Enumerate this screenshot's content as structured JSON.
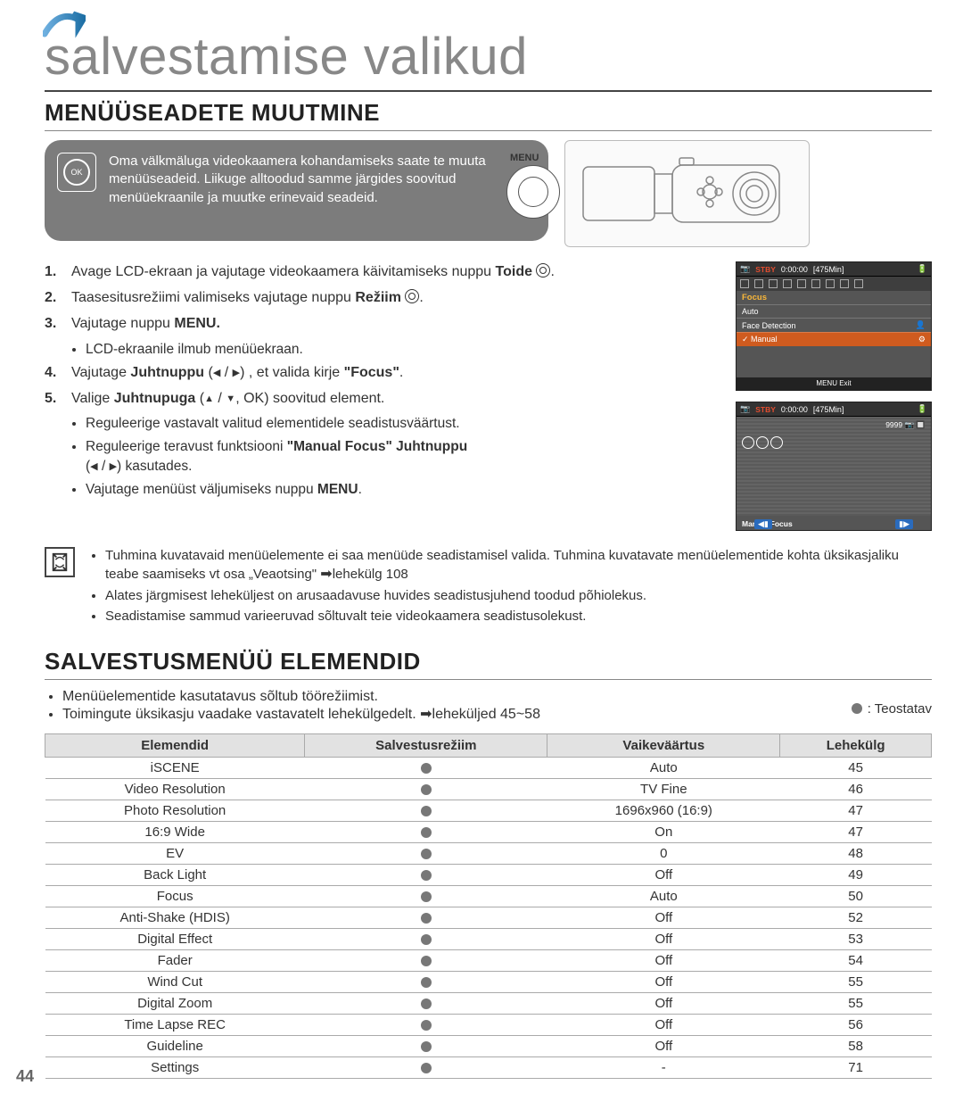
{
  "page_number": "44",
  "title": "salvestamise valikud",
  "h2_1": "MENÜÜSEADETE MUUTMINE",
  "h2_2": "SALVESTUSMENÜÜ ELEMENDID",
  "menu_box_text": "Oma välkmäluga videokaamera kohandamiseks saate te muuta menüüseadeid. Liikuge alltoodud samme järgides soovitud menüüekraanile ja muutke erinevaid seadeid.",
  "menu_badge_label": "MENU",
  "ok_label": "OK",
  "screen1": {
    "stby": "STBY",
    "time": "0:00:00",
    "remain": "[475Min]",
    "menu_title": "Focus",
    "item1": "Auto",
    "item2": "Face Detection",
    "item3": "Manual",
    "exit": "Exit"
  },
  "screen2": {
    "stby": "STBY",
    "time": "0:00:00",
    "remain": "[475Min]",
    "count": "9999",
    "mf": "Manual Focus"
  },
  "steps": {
    "s1a": "Avage LCD-ekraan ja vajutage videokaamera käivitamiseks nuppu ",
    "s1b": "Toide",
    "s2a": "Taasesitusrežiimi valimiseks vajutage nuppu ",
    "s2b": "Režiim",
    "s3a": "Vajutage nuppu ",
    "s3b": "MENU.",
    "s3_sub1": "LCD-ekraanile ilmub menüüekraan.",
    "s4a": "Vajutage ",
    "s4b": "Juhtnuppu",
    "s4c": " , et valida kirje ",
    "s4d": "\"Focus\"",
    "s5a": "Valige ",
    "s5b": "Juhtnupuga",
    "s5c": ", OK) soovitud element.",
    "s5_sub1": "Reguleerige vastavalt valitud elementidele seadistusväärtust.",
    "s5_sub2a": "Reguleerige teravust funktsiooni ",
    "s5_sub2b": "\"Manual Focus\" Juhtnuppu",
    "s5_sub2c": " kasutades.",
    "s5_sub3a": "Vajutage menüüst väljumiseks nuppu ",
    "s5_sub3b": "MENU"
  },
  "notes": {
    "n1": "Tuhmina kuvatavaid menüüelemente ei saa menüüde seadistamisel valida.  Tuhmina kuvatavate menüüelementide kohta üksikasjaliku teabe saamiseks vt osa „Veaotsing\" ",
    "n1_page": "lehekülg 108",
    "n2": "Alates järgmisest leheküljest on arusaadavuse huvides seadistusjuhend toodud põhiolekus.",
    "n3": "Seadistamise sammud varieeruvad sõltuvalt teie videokaamera seadistusolekust."
  },
  "lead1": "Menüüelementide kasutatavus sõltub töörežiimist.",
  "lead2a": "Toimingute üksikasju vaadake vastavatelt lehekülgedelt. ",
  "lead2b": "leheküljed 45~58",
  "legend_label": ": Teostatav",
  "table": {
    "headers": [
      "Elemendid",
      "Salvestusrežiim",
      "Vaikeväärtus",
      "Lehekülg"
    ],
    "rows": [
      {
        "name": "iSCENE",
        "mode": true,
        "def": "Auto",
        "page": "45"
      },
      {
        "name": "Video Resolution",
        "mode": true,
        "def": "TV Fine",
        "page": "46"
      },
      {
        "name": "Photo Resolution",
        "mode": true,
        "def": "1696x960 (16:9)",
        "page": "47"
      },
      {
        "name": "16:9 Wide",
        "mode": true,
        "def": "On",
        "page": "47"
      },
      {
        "name": "EV",
        "mode": true,
        "def": "0",
        "page": "48"
      },
      {
        "name": "Back Light",
        "mode": true,
        "def": "Off",
        "page": "49"
      },
      {
        "name": "Focus",
        "mode": true,
        "def": "Auto",
        "page": "50"
      },
      {
        "name": "Anti-Shake (HDIS)",
        "mode": true,
        "def": "Off",
        "page": "52"
      },
      {
        "name": "Digital Effect",
        "mode": true,
        "def": "Off",
        "page": "53"
      },
      {
        "name": "Fader",
        "mode": true,
        "def": "Off",
        "page": "54"
      },
      {
        "name": "Wind Cut",
        "mode": true,
        "def": "Off",
        "page": "55"
      },
      {
        "name": "Digital Zoom",
        "mode": true,
        "def": "Off",
        "page": "55"
      },
      {
        "name": "Time Lapse REC",
        "mode": true,
        "def": "Off",
        "page": "56"
      },
      {
        "name": "Guideline",
        "mode": true,
        "def": "Off",
        "page": "58"
      },
      {
        "name": "Settings",
        "mode": true,
        "def": "-",
        "page": "71"
      }
    ]
  },
  "colors": {
    "title_color": "#888888",
    "menu_box_bg": "#7c7c7c",
    "highlight_orange": "#cf5b1f",
    "focus_yellow": "#f7b63a",
    "stby_orange": "#e34d2f",
    "arrow_blue": "#2a6bbd",
    "dot_gray": "#777777",
    "header_bg": "#e2e2e2"
  }
}
